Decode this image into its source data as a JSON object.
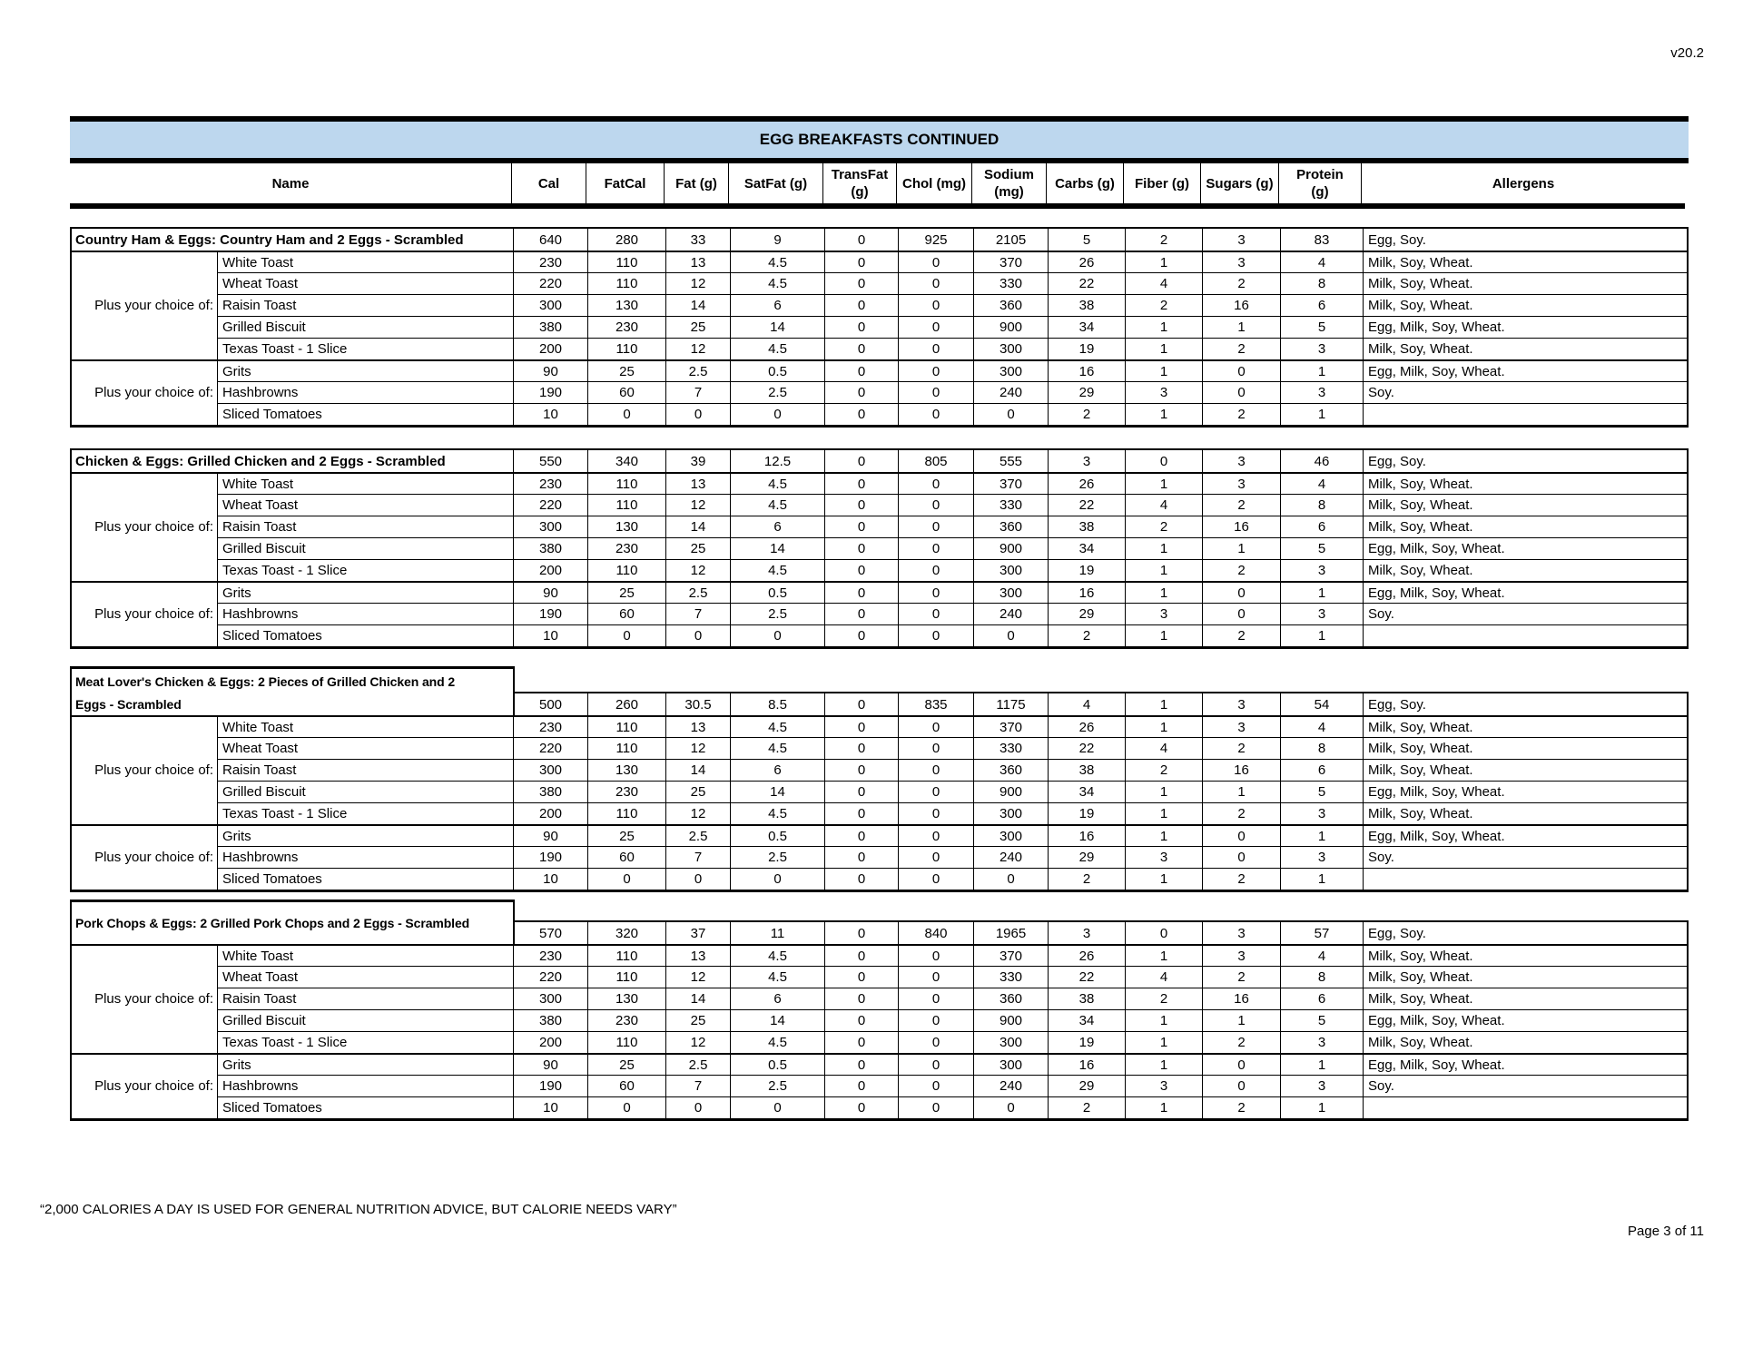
{
  "version_label": "v20.2",
  "footer_note": "“2,000 CALORIES A DAY IS USED FOR GENERAL NUTRITION ADVICE, BUT CALORIE NEEDS VARY”",
  "page_label": "Page 3 of 11",
  "table": {
    "title": "EGG BREAKFASTS CONTINUED",
    "title_bg_color": "#BDD7EE",
    "border_color": "#000000",
    "columns": [
      {
        "key": "name",
        "label": "Name"
      },
      {
        "key": "cal",
        "label": "Cal"
      },
      {
        "key": "fatcal",
        "label": "FatCal"
      },
      {
        "key": "fat",
        "label": "Fat (g)"
      },
      {
        "key": "satfat",
        "label": "SatFat (g)"
      },
      {
        "key": "transfat",
        "label": "TransFat\n(g)"
      },
      {
        "key": "chol",
        "label": "Chol (mg)"
      },
      {
        "key": "sodium",
        "label": "Sodium\n(mg)"
      },
      {
        "key": "carbs",
        "label": "Carbs (g)"
      },
      {
        "key": "fiber",
        "label": "Fiber (g)"
      },
      {
        "key": "sugars",
        "label": "Sugars (g)"
      },
      {
        "key": "protein",
        "label": "Protein\n(g)"
      },
      {
        "key": "allergens",
        "label": "Allergens"
      }
    ],
    "sections": [
      {
        "name": "Country Ham & Eggs: Country Ham and 2 Eggs - Scrambled",
        "name_box": "row",
        "values": [
          "640",
          "280",
          "33",
          "9",
          "0",
          "925",
          "2105",
          "5",
          "2",
          "3",
          "83"
        ],
        "allergens": "Egg, Soy."
      },
      {
        "name": "Chicken & Eggs: Grilled Chicken and 2 Eggs - Scrambled",
        "name_box": "row",
        "values": [
          "550",
          "340",
          "39",
          "12.5",
          "0",
          "805",
          "555",
          "3",
          "0",
          "3",
          "46"
        ],
        "allergens": "Egg, Soy."
      },
      {
        "name": "Meat Lover's Chicken & Eggs: 2 Pieces of Grilled Chicken and 2\nEggs - Scrambled",
        "name_box": "tall-2",
        "values": [
          "500",
          "260",
          "30.5",
          "8.5",
          "0",
          "835",
          "1175",
          "4",
          "1",
          "3",
          "54"
        ],
        "allergens": "Egg, Soy."
      },
      {
        "name": "Pork Chops & Eggs: 2 Grilled Pork Chops and 2 Eggs - Scrambled",
        "name_box": "tall-1",
        "values": [
          "570",
          "320",
          "37",
          "11",
          "0",
          "840",
          "1965",
          "3",
          "0",
          "3",
          "57"
        ],
        "allergens": "Egg, Soy."
      }
    ],
    "choice_groups": [
      {
        "label": "Plus your choice of:",
        "items": [
          {
            "name": "White Toast",
            "values": [
              "230",
              "110",
              "13",
              "4.5",
              "0",
              "0",
              "370",
              "26",
              "1",
              "3",
              "4"
            ],
            "allergens": "Milk, Soy, Wheat."
          },
          {
            "name": "Wheat Toast",
            "values": [
              "220",
              "110",
              "12",
              "4.5",
              "0",
              "0",
              "330",
              "22",
              "4",
              "2",
              "8"
            ],
            "allergens": "Milk, Soy, Wheat."
          },
          {
            "name": "Raisin Toast",
            "values": [
              "300",
              "130",
              "14",
              "6",
              "0",
              "0",
              "360",
              "38",
              "2",
              "16",
              "6"
            ],
            "allergens": "Milk, Soy, Wheat."
          },
          {
            "name": "Grilled Biscuit",
            "values": [
              "380",
              "230",
              "25",
              "14",
              "0",
              "0",
              "900",
              "34",
              "1",
              "1",
              "5"
            ],
            "allergens": "Egg, Milk, Soy, Wheat."
          },
          {
            "name": "Texas Toast - 1 Slice",
            "values": [
              "200",
              "110",
              "12",
              "4.5",
              "0",
              "0",
              "300",
              "19",
              "1",
              "2",
              "3"
            ],
            "allergens": "Milk, Soy, Wheat."
          }
        ]
      },
      {
        "label": "Plus your choice of:",
        "items": [
          {
            "name": "Grits",
            "values": [
              "90",
              "25",
              "2.5",
              "0.5",
              "0",
              "0",
              "300",
              "16",
              "1",
              "0",
              "1"
            ],
            "allergens": "Egg, Milk, Soy, Wheat."
          },
          {
            "name": "Hashbrowns",
            "values": [
              "190",
              "60",
              "7",
              "2.5",
              "0",
              "0",
              "240",
              "29",
              "3",
              "0",
              "3"
            ],
            "allergens": "Soy."
          },
          {
            "name": "Sliced Tomatoes",
            "values": [
              "10",
              "0",
              "0",
              "0",
              "0",
              "0",
              "0",
              "2",
              "1",
              "2",
              "1"
            ],
            "allergens": ""
          }
        ]
      }
    ]
  }
}
